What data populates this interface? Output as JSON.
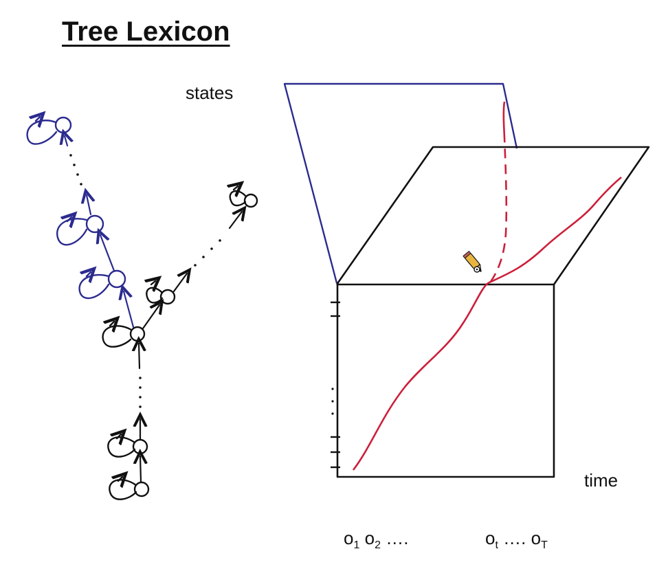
{
  "title": "Tree Lexicon",
  "labels": {
    "states": "states",
    "time": "time",
    "observations_left": {
      "o1": "o",
      "o1_sub": "1",
      "o2": "o",
      "o2_sub": "2",
      "dots1": "….",
      "ot": "o",
      "ot_sub": "t",
      "dots2": "….",
      "oT": "o",
      "oT_sub": "T"
    }
  },
  "colors": {
    "ink": "#111111",
    "blue": "#2b2b8f",
    "red": "#cc1f3a",
    "pencil_body": "#e8b640"
  },
  "icons": {
    "pencil": "pencil-icon"
  }
}
